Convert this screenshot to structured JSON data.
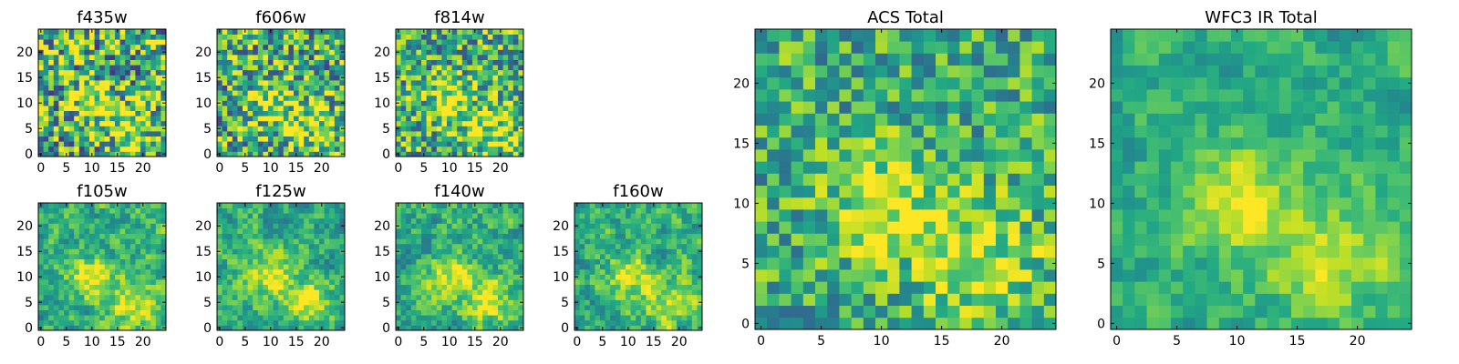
{
  "chart_data": [
    {
      "type": "heatmap",
      "title": "f435w",
      "colormap": "viridis",
      "grid": false,
      "xlim": [
        0,
        24
      ],
      "ylim": [
        0,
        24
      ],
      "xticks": [
        0,
        5,
        10,
        15,
        20
      ],
      "yticks": [
        0,
        5,
        10,
        15,
        20
      ],
      "seed": 11,
      "noise": 0.95,
      "smoothing": 0
    },
    {
      "type": "heatmap",
      "title": "f606w",
      "colormap": "viridis",
      "grid": false,
      "xlim": [
        0,
        24
      ],
      "ylim": [
        0,
        24
      ],
      "xticks": [
        0,
        5,
        10,
        15,
        20
      ],
      "yticks": [
        0,
        5,
        10,
        15,
        20
      ],
      "seed": 23,
      "noise": 0.85,
      "smoothing": 0
    },
    {
      "type": "heatmap",
      "title": "f814w",
      "colormap": "viridis",
      "grid": false,
      "xlim": [
        0,
        24
      ],
      "ylim": [
        0,
        24
      ],
      "xticks": [
        0,
        5,
        10,
        15,
        20
      ],
      "yticks": [
        0,
        5,
        10,
        15,
        20
      ],
      "seed": 37,
      "noise": 0.75,
      "smoothing": 0
    },
    {
      "type": "heatmap",
      "title": "f105w",
      "colormap": "viridis",
      "grid": false,
      "xlim": [
        0,
        24
      ],
      "ylim": [
        0,
        24
      ],
      "xticks": [
        0,
        5,
        10,
        15,
        20
      ],
      "yticks": [
        0,
        5,
        10,
        15,
        20
      ],
      "seed": 41,
      "noise": 0.7,
      "smoothing": 1
    },
    {
      "type": "heatmap",
      "title": "f125w",
      "colormap": "viridis",
      "grid": false,
      "xlim": [
        0,
        24
      ],
      "ylim": [
        0,
        24
      ],
      "xticks": [
        0,
        5,
        10,
        15,
        20
      ],
      "yticks": [
        0,
        5,
        10,
        15,
        20
      ],
      "seed": 53,
      "noise": 0.7,
      "smoothing": 1
    },
    {
      "type": "heatmap",
      "title": "f140w",
      "colormap": "viridis",
      "grid": false,
      "xlim": [
        0,
        24
      ],
      "ylim": [
        0,
        24
      ],
      "xticks": [
        0,
        5,
        10,
        15,
        20
      ],
      "yticks": [
        0,
        5,
        10,
        15,
        20
      ],
      "seed": 67,
      "noise": 0.7,
      "smoothing": 1
    },
    {
      "type": "heatmap",
      "title": "f160w",
      "colormap": "viridis",
      "grid": false,
      "xlim": [
        0,
        24
      ],
      "ylim": [
        0,
        24
      ],
      "xticks": [
        0,
        5,
        10,
        15,
        20
      ],
      "yticks": [
        0,
        5,
        10,
        15,
        20
      ],
      "seed": 79,
      "noise": 0.7,
      "smoothing": 1
    },
    {
      "type": "heatmap",
      "title": "ACS Total",
      "colormap": "viridis",
      "grid": false,
      "xlim": [
        0,
        24
      ],
      "ylim": [
        0,
        24
      ],
      "xticks": [
        0,
        5,
        10,
        15,
        20
      ],
      "yticks": [
        0,
        5,
        10,
        15,
        20
      ],
      "seed": 97,
      "noise": 0.55,
      "smoothing": 0
    },
    {
      "type": "heatmap",
      "title": "WFC3 IR Total",
      "colormap": "viridis",
      "grid": false,
      "xlim": [
        0,
        24
      ],
      "ylim": [
        0,
        24
      ],
      "xticks": [
        0,
        5,
        10,
        15,
        20
      ],
      "yticks": [
        0,
        5,
        10,
        15,
        20
      ],
      "seed": 113,
      "noise": 0.5,
      "smoothing": 1
    }
  ]
}
